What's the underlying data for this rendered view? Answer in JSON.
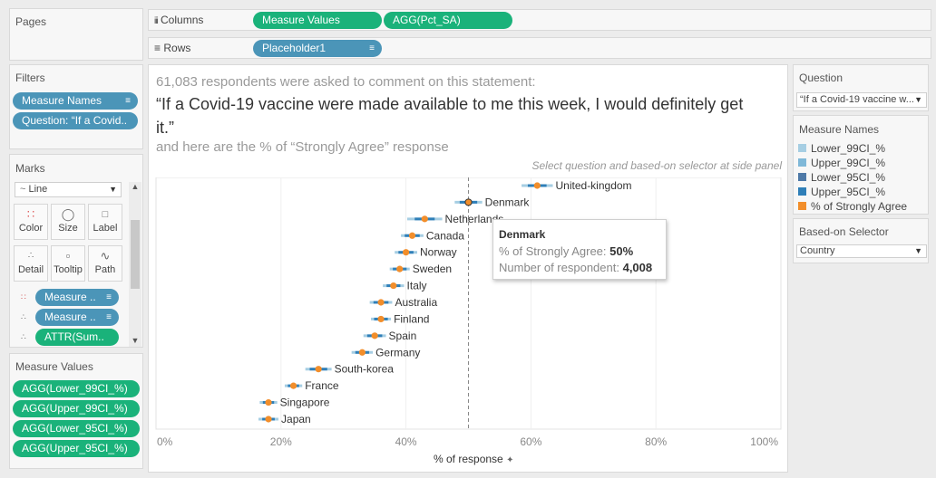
{
  "pages": {
    "title": "Pages"
  },
  "columns": {
    "label": "Columns",
    "pills": [
      "Measure Values",
      "AGG(Pct_SA)"
    ]
  },
  "rows": {
    "label": "Rows",
    "pills": [
      "Placeholder1"
    ]
  },
  "filters": {
    "title": "Filters",
    "pills": [
      "Measure Names",
      "Question: “If a Covid.."
    ]
  },
  "marks": {
    "title": "Marks",
    "type": "Line",
    "buttons": [
      "Color",
      "Size",
      "Label",
      "Detail",
      "Tooltip",
      "Path"
    ],
    "pills": [
      "Measure ..",
      "Measure ..",
      "ATTR(Sum.."
    ]
  },
  "measure_values": {
    "title": "Measure Values",
    "pills": [
      "AGG(Lower_99CI_%)",
      "AGG(Upper_99CI_%)",
      "AGG(Lower_95CI_%)",
      "AGG(Upper_95CI_%)"
    ]
  },
  "question_filter": {
    "title": "Question",
    "value": "“If a Covid-19 vaccine w..."
  },
  "measure_names_legend": {
    "title": "Measure Names",
    "items": [
      {
        "label": "Lower_99CI_%",
        "color": "#a6cee3"
      },
      {
        "label": "Upper_99CI_%",
        "color": "#7fb8d8"
      },
      {
        "label": "Lower_95CI_%",
        "color": "#4e79a7"
      },
      {
        "label": "Upper_95CI_%",
        "color": "#2f7fb8"
      },
      {
        "label": "% of Strongly Agree",
        "color": "#f28e2b"
      }
    ]
  },
  "based_on_selector": {
    "title": "Based-on Selector",
    "value": "Country"
  },
  "viz": {
    "header_line1": "61,083 respondents were asked to comment on this statement:",
    "header_line2a": "“If a Covid-19 vaccine were made available to me this week, I would definitely get",
    "header_line2b": "it.”",
    "header_line3": "and here are the % of “Strongly Agree” response",
    "hint": "Select question and based-on selector at side panel",
    "xaxis_title": "% of response"
  },
  "tooltip": {
    "title": "Denmark",
    "row1_label": "% of Strongly Agree:",
    "row1_value": "50%",
    "row2_label": "Number of respondent:",
    "row2_value": "4,008"
  },
  "chart_data": {
    "type": "scatter",
    "xlabel": "% of response",
    "xlim": [
      0,
      100
    ],
    "xticks": [
      "0%",
      "20%",
      "40%",
      "60%",
      "80%",
      "100%"
    ],
    "reference_line": 50,
    "categories": [
      "United-kingdom",
      "Denmark",
      "Netherlands",
      "Canada",
      "Norway",
      "Sweden",
      "Italy",
      "Australia",
      "Finland",
      "Spain",
      "Germany",
      "South-korea",
      "France",
      "Singapore",
      "Japan"
    ],
    "series": [
      {
        "name": "% of Strongly Agree",
        "values": [
          61,
          50,
          43,
          41,
          40,
          39,
          38,
          36,
          36,
          35,
          33,
          26,
          22,
          18,
          18
        ]
      },
      {
        "name": "Lower_99CI_%",
        "values": [
          58.5,
          47.8,
          40.2,
          39.2,
          38.2,
          37.4,
          36.3,
          34.2,
          34.4,
          33.2,
          31.3,
          23.9,
          20.6,
          16.6,
          16.4
        ]
      },
      {
        "name": "Upper_99CI_%",
        "values": [
          63.5,
          52.2,
          45.8,
          42.8,
          41.8,
          40.6,
          39.7,
          37.8,
          37.6,
          36.8,
          34.7,
          28.1,
          23.4,
          19.4,
          19.6
        ]
      },
      {
        "name": "Lower_95CI_%",
        "values": [
          59.5,
          48.6,
          41.4,
          39.8,
          38.8,
          37.9,
          36.9,
          34.8,
          34.9,
          33.8,
          31.9,
          24.6,
          21.1,
          17.1,
          17.0
        ]
      },
      {
        "name": "Upper_95CI_%",
        "values": [
          62.5,
          51.4,
          44.6,
          42.2,
          41.2,
          40.1,
          39.1,
          37.2,
          37.1,
          36.2,
          34.1,
          27.4,
          22.9,
          18.9,
          19.0
        ]
      }
    ]
  }
}
